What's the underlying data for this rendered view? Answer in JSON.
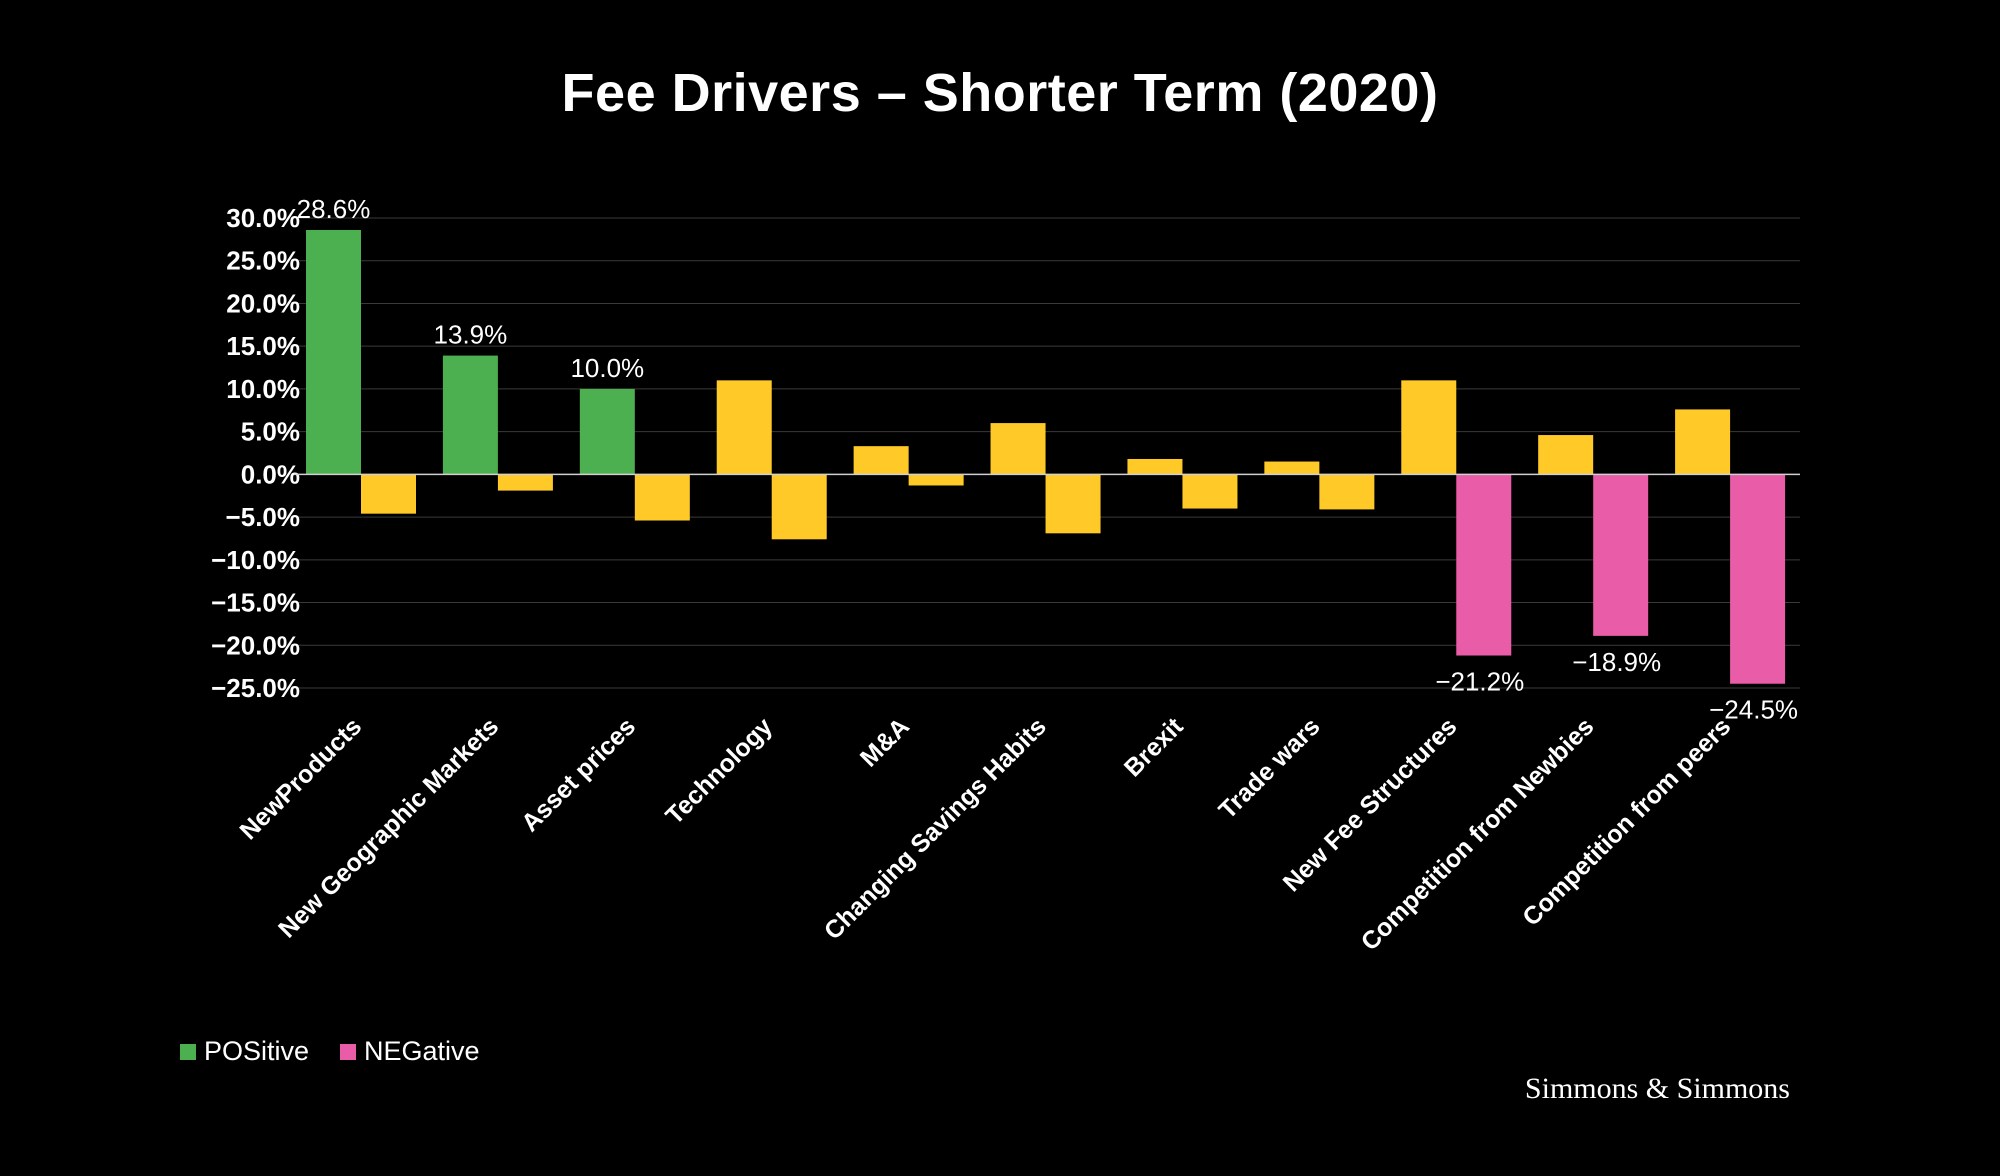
{
  "chart_data": {
    "type": "bar",
    "title": "Fee Drivers – Shorter Term (2020)",
    "xlabel": "",
    "ylabel": "",
    "ylim": [
      -25,
      30
    ],
    "yticks": [
      30,
      25,
      20,
      15,
      10,
      5,
      0,
      -5,
      -10,
      -15,
      -20,
      -25
    ],
    "ytick_labels": [
      "30.0%",
      "25.0%",
      "20.0%",
      "15.0%",
      "10.0%",
      "5.0%",
      "0.0%",
      "−5.0%",
      "−10.0%",
      "−15.0%",
      "−20.0%",
      "−25.0%"
    ],
    "grid": true,
    "categories": [
      "NewProducts",
      "New Geographic Markets",
      "Asset prices",
      "Technology",
      "M&A",
      "Changing Savings Habits",
      "Brexit",
      "Trade wars",
      "New Fee Structures",
      "Competition from Newbies",
      "Competition from peers"
    ],
    "series": [
      {
        "name": "POSitive",
        "values": [
          28.6,
          13.9,
          10.0,
          11.0,
          3.3,
          6.0,
          1.8,
          1.5,
          11.0,
          4.6,
          7.6
        ],
        "colors": [
          "#4caf50",
          "#4caf50",
          "#4caf50",
          "#ffca28",
          "#ffca28",
          "#ffca28",
          "#ffca28",
          "#ffca28",
          "#ffca28",
          "#ffca28",
          "#ffca28"
        ],
        "data_labels": [
          "28.6%",
          "13.9%",
          "10.0%",
          "",
          "",
          "",
          "",
          "",
          "",
          "",
          ""
        ]
      },
      {
        "name": "NEGative",
        "values": [
          -4.6,
          -1.9,
          -5.4,
          -7.6,
          -1.3,
          -6.9,
          -4.0,
          -4.1,
          -21.2,
          -18.9,
          -24.5
        ],
        "colors": [
          "#ffca28",
          "#ffca28",
          "#ffca28",
          "#ffca28",
          "#ffca28",
          "#ffca28",
          "#ffca28",
          "#ffca28",
          "#e95ca8",
          "#e95ca8",
          "#e95ca8"
        ],
        "data_labels": [
          "",
          "",
          "",
          "",
          "",
          "",
          "",
          "",
          "−21.2%",
          "−18.9%",
          "−24.5%"
        ]
      }
    ],
    "legend": {
      "placement": "bottom-left",
      "positive_label": "POSitive",
      "negative_label": "NEGative",
      "positive_color": "#4caf50",
      "negative_color": "#e95ca8"
    }
  },
  "brand": {
    "name": "Simmons & Simmons"
  }
}
